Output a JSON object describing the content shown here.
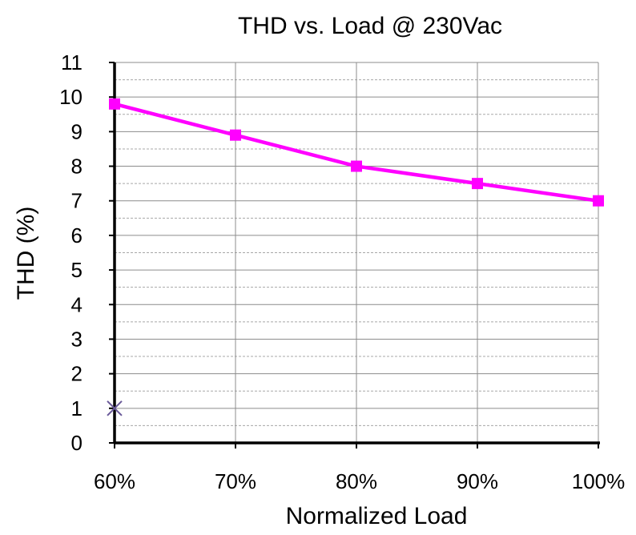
{
  "chart_data": {
    "type": "line",
    "title": "THD vs. Load @ 230Vac",
    "xlabel": "Normalized Load",
    "ylabel": "THD (%)",
    "categories": [
      "60%",
      "70%",
      "80%",
      "90%",
      "100%"
    ],
    "y_ticks": [
      "0",
      "1",
      "2",
      "3",
      "4",
      "5",
      "6",
      "7",
      "8",
      "9",
      "10",
      "11"
    ],
    "ylim": [
      0,
      11
    ],
    "grid": true,
    "minor_grid": true,
    "legend": "none",
    "series": [
      {
        "values": [
          9.8,
          8.9,
          8.0,
          7.5,
          7.0
        ],
        "color": "#ff00ff",
        "marker": "square"
      }
    ],
    "extra_points": [
      {
        "x": "60%",
        "y": 1.0,
        "marker": "x",
        "color": "#6b5b9a"
      }
    ]
  }
}
